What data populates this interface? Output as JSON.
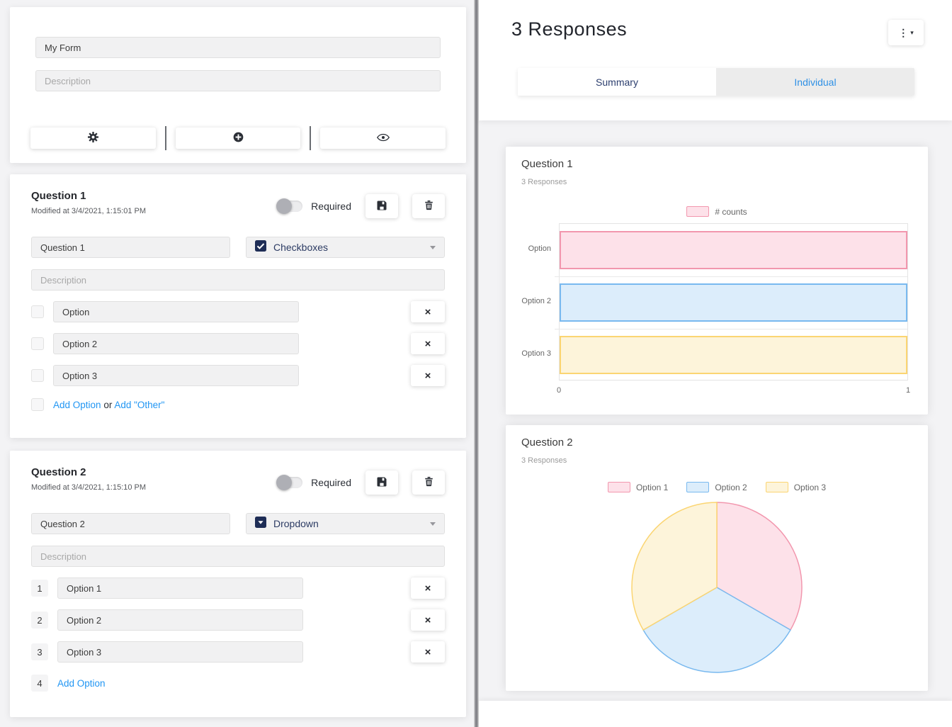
{
  "form_builder": {
    "title": {
      "value": "My Form"
    },
    "description": {
      "placeholder": "Description"
    },
    "toolbar": {
      "icons": [
        "gear",
        "plus-circle",
        "eye"
      ]
    },
    "questions": [
      {
        "heading": "Question 1",
        "modified": "Modified at 3/4/2021, 1:15:01 PM",
        "required_label": "Required",
        "required_on": false,
        "title_value": "Question 1",
        "type": {
          "label": "Checkboxes",
          "icon": "checkbox-checked"
        },
        "description_placeholder": "Description",
        "remove_label": "×",
        "options": [
          {
            "value": "Option"
          },
          {
            "value": "Option 2"
          },
          {
            "value": "Option 3"
          }
        ],
        "footer": {
          "add_option": "Add Option",
          "or": "or",
          "add_other": "Add \"Other\""
        }
      },
      {
        "heading": "Question 2",
        "modified": "Modified at 3/4/2021, 1:15:10 PM",
        "required_label": "Required",
        "required_on": false,
        "title_value": "Question 2",
        "type": {
          "label": "Dropdown",
          "icon": "dropdown-square"
        },
        "description_placeholder": "Description",
        "remove_label": "×",
        "options": [
          {
            "index": "1",
            "value": "Option 1"
          },
          {
            "index": "2",
            "value": "Option 2"
          },
          {
            "index": "3",
            "value": "Option 3"
          }
        ],
        "footer": {
          "index": "4",
          "add_option": "Add Option"
        }
      }
    ]
  },
  "responses_panel": {
    "title": "3 Responses",
    "menu": {
      "icon": "kebab-menu",
      "dots": "⋮",
      "caret": "▾"
    },
    "tabs": [
      {
        "label": "Summary",
        "active": true
      },
      {
        "label": "Individual",
        "active": false
      }
    ]
  },
  "chart_data": [
    {
      "type": "bar",
      "orientation": "horizontal",
      "title": "Question 1",
      "subtitle": "3 Responses",
      "legend": [
        {
          "label": "# counts"
        }
      ],
      "legend_position": "top",
      "categories": [
        "Option",
        "Option 2",
        "Option 3"
      ],
      "values": [
        1,
        1,
        1
      ],
      "series_colors": [
        {
          "fill": "#fde1e9",
          "border": "#f297ae"
        },
        {
          "fill": "#dcedfb",
          "border": "#79b9ef"
        },
        {
          "fill": "#fdf4da",
          "border": "#fbd572"
        }
      ],
      "xlim": [
        0,
        1
      ],
      "x_ticks": [
        "0",
        "1"
      ],
      "grid": true
    },
    {
      "type": "pie",
      "title": "Question 2",
      "subtitle": "3 Responses",
      "labels": [
        "Option 1",
        "Option 2",
        "Option 3"
      ],
      "values": [
        1,
        1,
        1
      ],
      "start_angle_deg": -90,
      "legend_position": "top",
      "series_colors": [
        {
          "fill": "#fde1e9",
          "border": "#f297ae"
        },
        {
          "fill": "#dcedfb",
          "border": "#79b9ef"
        },
        {
          "fill": "#fdf4da",
          "border": "#fbd572"
        }
      ]
    }
  ]
}
